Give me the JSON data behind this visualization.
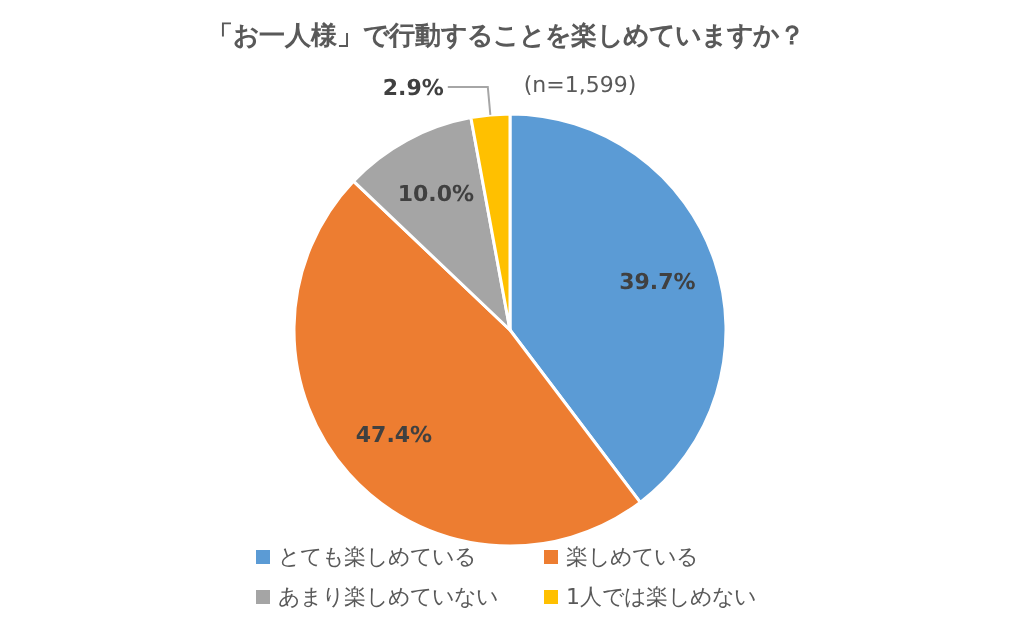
{
  "chart_data": {
    "type": "pie",
    "title": "「お一人様」で行動することを楽しめていますか？",
    "categories": [
      "とても楽しめている",
      "楽しめている",
      "あまり楽しめていない",
      "1人では楽しめない"
    ],
    "values": [
      39.7,
      47.4,
      10.0,
      2.9
    ],
    "value_labels": [
      "39.7%",
      "47.4%",
      "10.0%",
      "2.9%"
    ],
    "colors": [
      "#5b9bd5",
      "#ed7d31",
      "#a5a5a5",
      "#ffc000"
    ],
    "annotations": [
      "(n=1,599)"
    ],
    "legend": "bottom"
  }
}
